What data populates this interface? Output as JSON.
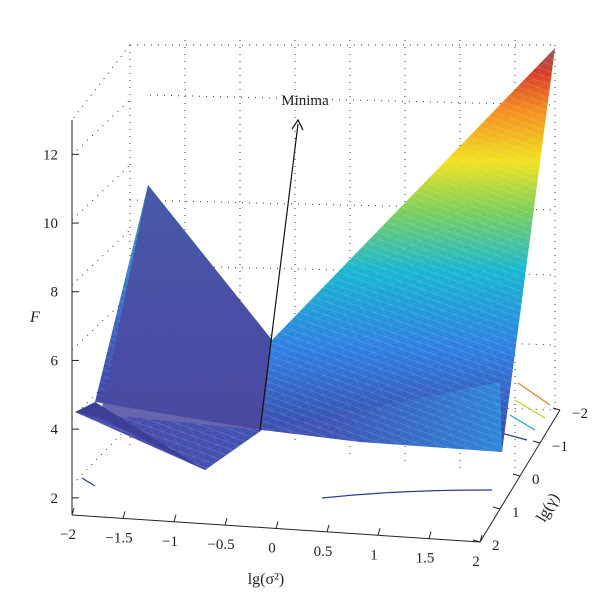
{
  "chart_data": {
    "type": "surface",
    "title": "",
    "zlabel": "F",
    "xlabel": "lg(σ²)",
    "ylabel": "lg(γ)",
    "z_ticks": [
      "2",
      "4",
      "6",
      "8",
      "10",
      "12"
    ],
    "x_ticks": [
      "−2",
      "−1.5",
      "−1",
      "−0.5",
      "0",
      "0.5",
      "1",
      "1.5",
      "2"
    ],
    "y_ticks": [
      "−2",
      "−1",
      "0",
      "1",
      "2"
    ],
    "zlim": [
      1.5,
      13
    ],
    "xlim": [
      -2,
      2
    ],
    "ylim": [
      -2,
      2
    ],
    "annotation": "Minima",
    "surface_corners": [
      {
        "x": -2,
        "y": -2,
        "F": 4.2
      },
      {
        "x": -2,
        "y": 2,
        "F": 11.0
      },
      {
        "x": 2,
        "y": -2,
        "F": 12.6
      },
      {
        "x": 2,
        "y": 2,
        "F": 3.6
      },
      {
        "x": 0,
        "y": 0,
        "F": 3.5
      }
    ],
    "colormap": "parula",
    "grid": true
  }
}
